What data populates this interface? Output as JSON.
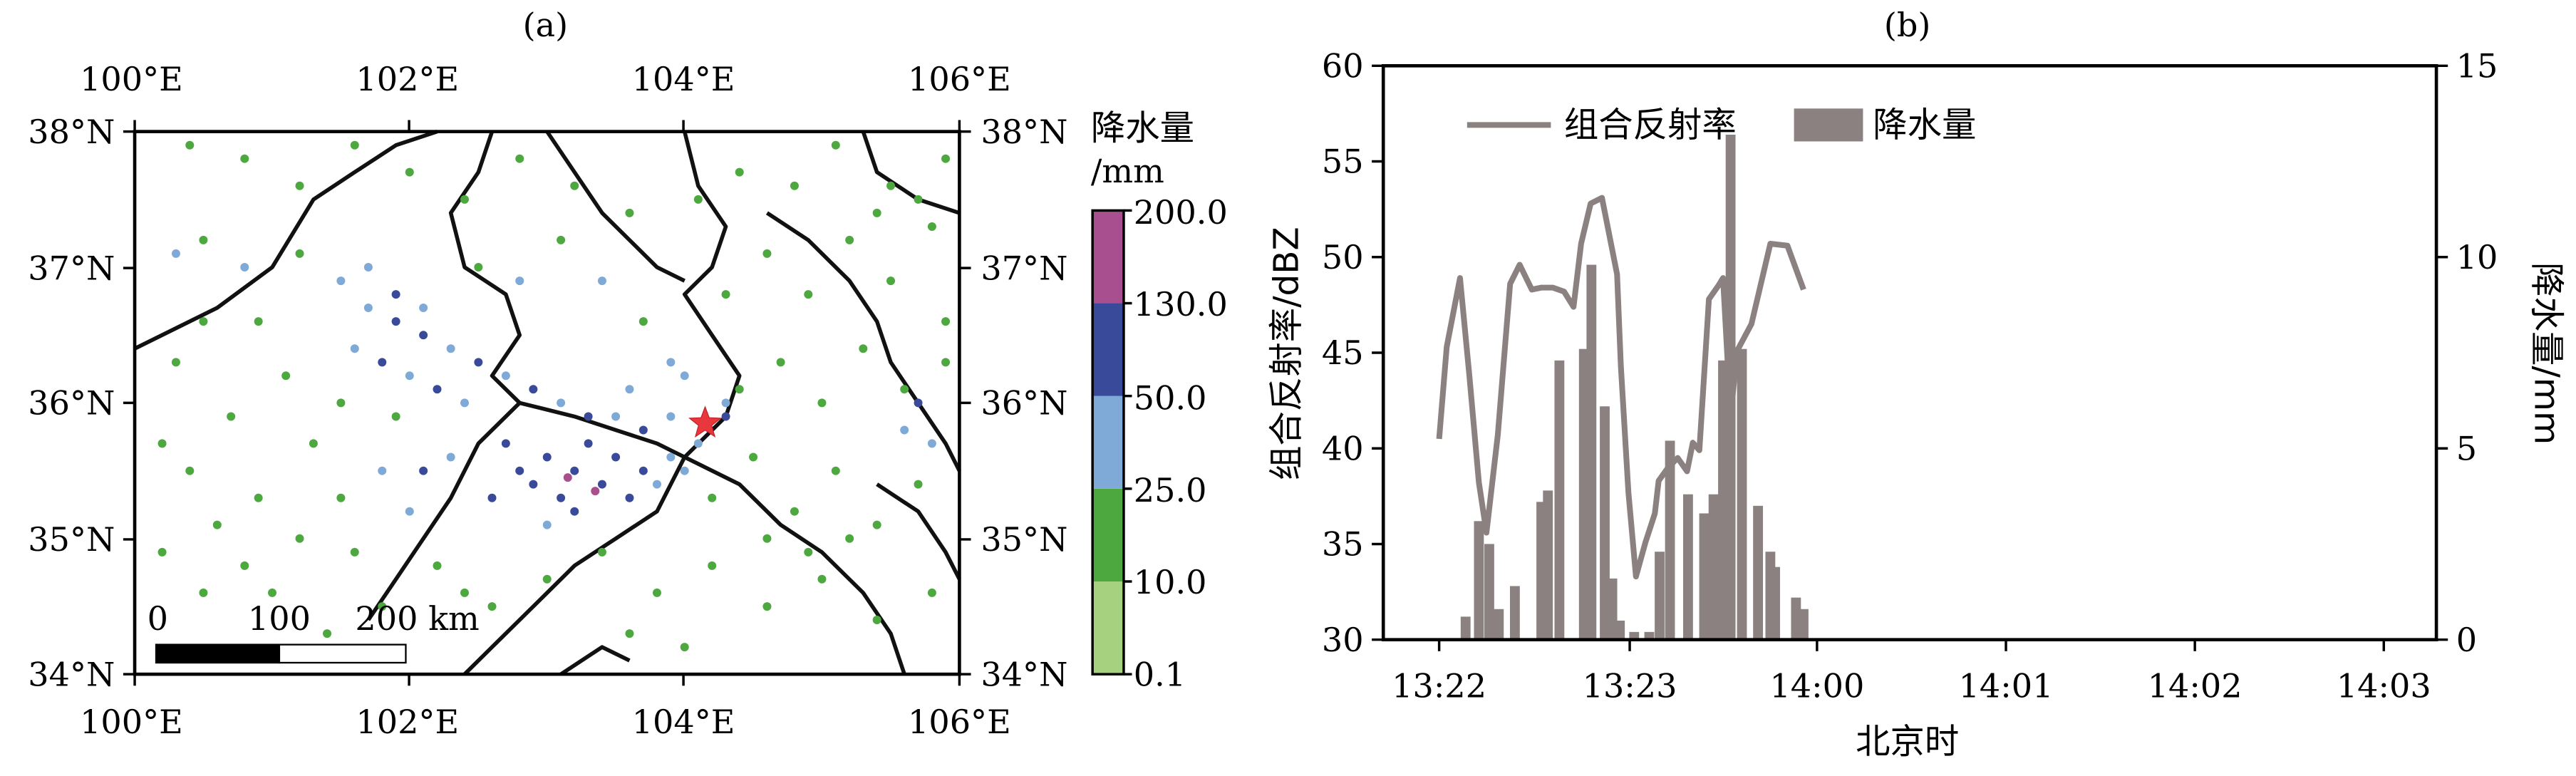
{
  "panel_a": {
    "label": "(a)",
    "lon_ticks": [
      "100°E",
      "102°E",
      "104°E",
      "106°E"
    ],
    "lat_ticks": [
      "38°N",
      "37°N",
      "36°N",
      "35°N",
      "34°N"
    ],
    "colorbar": {
      "title_line1": "降水量",
      "title_line2": "/mm",
      "levels": [
        "0.1",
        "10.0",
        "25.0",
        "50.0",
        "130.0",
        "200.0"
      ],
      "colors": [
        "#a6d27f",
        "#4ca83f",
        "#7fa9d6",
        "#3a4a9a",
        "#a8508f"
      ]
    },
    "scalebar": {
      "labels": [
        "0",
        "100",
        "200 km"
      ]
    },
    "marker_color": "#e8383d",
    "stations": [
      [
        101.2,
        37.1,
        1
      ],
      [
        101.5,
        36.9,
        2
      ],
      [
        101.7,
        36.7,
        2
      ],
      [
        101.9,
        36.6,
        3
      ],
      [
        102.1,
        36.5,
        3
      ],
      [
        102.3,
        36.4,
        2
      ],
      [
        102.5,
        36.3,
        3
      ],
      [
        102.7,
        36.2,
        2
      ],
      [
        102.9,
        36.1,
        3
      ],
      [
        103.1,
        36.0,
        2
      ],
      [
        103.3,
        35.9,
        3
      ],
      [
        103.5,
        35.9,
        2
      ],
      [
        103.7,
        35.8,
        3
      ],
      [
        103.9,
        35.9,
        2
      ],
      [
        101.6,
        36.4,
        2
      ],
      [
        101.8,
        36.3,
        3
      ],
      [
        102.0,
        36.2,
        2
      ],
      [
        102.2,
        36.1,
        3
      ],
      [
        102.4,
        36.0,
        2
      ],
      [
        101.9,
        36.8,
        3
      ],
      [
        101.7,
        37.0,
        2
      ],
      [
        102.1,
        36.7,
        2
      ],
      [
        100.8,
        37.0,
        2
      ],
      [
        100.5,
        37.2,
        1
      ],
      [
        100.3,
        37.1,
        2
      ],
      [
        102.7,
        35.7,
        3
      ],
      [
        102.8,
        35.5,
        3
      ],
      [
        102.9,
        35.4,
        3
      ],
      [
        103.0,
        35.6,
        3
      ],
      [
        103.1,
        35.3,
        3
      ],
      [
        103.2,
        35.5,
        3
      ],
      [
        103.3,
        35.7,
        3
      ],
      [
        103.4,
        35.4,
        3
      ],
      [
        103.5,
        35.6,
        3
      ],
      [
        103.6,
        35.3,
        3
      ],
      [
        103.7,
        35.5,
        3
      ],
      [
        103.8,
        35.4,
        2
      ],
      [
        103.9,
        35.6,
        2
      ],
      [
        104.0,
        35.5,
        2
      ],
      [
        103.2,
        35.2,
        3
      ],
      [
        103.0,
        35.1,
        2
      ],
      [
        102.6,
        35.3,
        3
      ],
      [
        103.35,
        35.35,
        4
      ],
      [
        103.15,
        35.45,
        4
      ],
      [
        102.3,
        35.6,
        2
      ],
      [
        102.1,
        35.5,
        3
      ],
      [
        102.0,
        35.2,
        2
      ],
      [
        101.8,
        35.5,
        2
      ],
      [
        101.5,
        35.3,
        1
      ],
      [
        101.2,
        35.0,
        1
      ],
      [
        100.9,
        35.3,
        1
      ],
      [
        100.6,
        35.1,
        1
      ],
      [
        100.4,
        35.5,
        1
      ],
      [
        100.2,
        35.7,
        1
      ],
      [
        100.3,
        36.3,
        1
      ],
      [
        100.5,
        36.6,
        1
      ],
      [
        100.9,
        36.6,
        1
      ],
      [
        101.1,
        36.2,
        1
      ],
      [
        100.7,
        35.9,
        1
      ],
      [
        101.3,
        35.7,
        1
      ],
      [
        101.5,
        36.0,
        1
      ],
      [
        101.9,
        35.9,
        1
      ],
      [
        101.0,
        34.6,
        1
      ],
      [
        101.4,
        34.3,
        1
      ],
      [
        101.8,
        34.5,
        1
      ],
      [
        102.2,
        34.8,
        1
      ],
      [
        102.6,
        34.5,
        1
      ],
      [
        103.0,
        34.7,
        1
      ],
      [
        103.4,
        34.9,
        1
      ],
      [
        103.8,
        34.6,
        1
      ],
      [
        104.2,
        34.8,
        1
      ],
      [
        104.6,
        34.5,
        1
      ],
      [
        105.0,
        34.7,
        1
      ],
      [
        105.4,
        34.4,
        1
      ],
      [
        105.8,
        34.6,
        1
      ],
      [
        104.2,
        35.3,
        1
      ],
      [
        104.5,
        35.6,
        1
      ],
      [
        104.8,
        35.2,
        1
      ],
      [
        105.1,
        35.5,
        1
      ],
      [
        105.4,
        35.1,
        1
      ],
      [
        105.7,
        35.4,
        1
      ],
      [
        104.4,
        36.1,
        1
      ],
      [
        104.7,
        36.3,
        1
      ],
      [
        105.0,
        36.0,
        1
      ],
      [
        105.3,
        36.4,
        1
      ],
      [
        105.6,
        36.1,
        1
      ],
      [
        105.9,
        36.3,
        1
      ],
      [
        104.3,
        36.8,
        1
      ],
      [
        104.6,
        37.1,
        1
      ],
      [
        104.9,
        36.8,
        1
      ],
      [
        105.2,
        37.2,
        1
      ],
      [
        105.5,
        36.9,
        1
      ],
      [
        105.8,
        37.3,
        1
      ],
      [
        104.1,
        37.5,
        1
      ],
      [
        104.4,
        37.7,
        1
      ],
      [
        104.8,
        37.6,
        1
      ],
      [
        105.1,
        37.9,
        1
      ],
      [
        105.5,
        37.6,
        1
      ],
      [
        105.9,
        37.8,
        1
      ],
      [
        103.6,
        37.4,
        1
      ],
      [
        103.2,
        37.6,
        1
      ],
      [
        102.8,
        37.8,
        1
      ],
      [
        102.4,
        37.5,
        1
      ],
      [
        102.0,
        37.7,
        1
      ],
      [
        101.6,
        37.9,
        1
      ],
      [
        101.2,
        37.6,
        1
      ],
      [
        100.8,
        37.8,
        1
      ],
      [
        100.4,
        37.9,
        1
      ],
      [
        103.7,
        36.6,
        1
      ],
      [
        103.4,
        36.9,
        2
      ],
      [
        103.1,
        37.2,
        1
      ],
      [
        102.8,
        36.9,
        2
      ],
      [
        102.5,
        37.0,
        1
      ],
      [
        104.0,
        36.2,
        2
      ],
      [
        104.3,
        36.0,
        2
      ],
      [
        104.1,
        35.7,
        2
      ],
      [
        104.3,
        35.9,
        3
      ],
      [
        103.6,
        36.1,
        2
      ],
      [
        103.9,
        36.3,
        2
      ],
      [
        105.4,
        37.4,
        1
      ],
      [
        105.7,
        37.5,
        1
      ],
      [
        105.9,
        36.6,
        1
      ],
      [
        105.7,
        36.0,
        3
      ],
      [
        105.8,
        35.7,
        2
      ],
      [
        105.6,
        35.8,
        2
      ],
      [
        104.6,
        35.0,
        1
      ],
      [
        104.9,
        34.9,
        1
      ],
      [
        105.2,
        35.0,
        1
      ],
      [
        102.4,
        34.6,
        1
      ],
      [
        101.6,
        34.9,
        1
      ],
      [
        100.8,
        34.8,
        1
      ],
      [
        100.5,
        34.6,
        1
      ],
      [
        100.2,
        34.9,
        1
      ],
      [
        103.6,
        34.3,
        1
      ],
      [
        104.0,
        34.2,
        1
      ]
    ],
    "boundaries": [
      [
        [
          100.0,
          36.4
        ],
        [
          100.6,
          36.7
        ],
        [
          101.0,
          37.0
        ],
        [
          101.3,
          37.5
        ],
        [
          101.6,
          37.7
        ],
        [
          101.9,
          37.9
        ],
        [
          102.2,
          38.0
        ]
      ],
      [
        [
          102.6,
          38.0
        ],
        [
          102.5,
          37.7
        ],
        [
          102.3,
          37.4
        ],
        [
          102.4,
          37.0
        ],
        [
          102.7,
          36.8
        ],
        [
          102.8,
          36.5
        ],
        [
          102.6,
          36.2
        ],
        [
          102.8,
          36.0
        ]
      ],
      [
        [
          102.8,
          36.0
        ],
        [
          103.2,
          35.9
        ],
        [
          103.5,
          35.8
        ],
        [
          103.8,
          35.7
        ],
        [
          104.0,
          35.6
        ]
      ],
      [
        [
          102.8,
          36.0
        ],
        [
          102.5,
          35.7
        ],
        [
          102.3,
          35.3
        ],
        [
          102.1,
          35.0
        ],
        [
          101.9,
          34.7
        ],
        [
          101.7,
          34.4
        ]
      ],
      [
        [
          103.0,
          38.0
        ],
        [
          103.2,
          37.7
        ],
        [
          103.4,
          37.4
        ],
        [
          103.6,
          37.2
        ],
        [
          103.8,
          37.0
        ],
        [
          104.0,
          36.9
        ]
      ],
      [
        [
          104.0,
          38.0
        ],
        [
          104.1,
          37.6
        ],
        [
          104.3,
          37.3
        ],
        [
          104.2,
          37.0
        ],
        [
          104.0,
          36.8
        ],
        [
          104.2,
          36.5
        ],
        [
          104.4,
          36.2
        ],
        [
          104.3,
          35.9
        ],
        [
          104.0,
          35.6
        ]
      ],
      [
        [
          104.0,
          35.6
        ],
        [
          103.8,
          35.2
        ],
        [
          103.5,
          35.0
        ],
        [
          103.2,
          34.8
        ],
        [
          102.9,
          34.5
        ],
        [
          102.6,
          34.2
        ],
        [
          102.4,
          34.0
        ]
      ],
      [
        [
          104.0,
          35.6
        ],
        [
          104.4,
          35.4
        ],
        [
          104.7,
          35.1
        ],
        [
          105.0,
          34.9
        ],
        [
          105.3,
          34.6
        ],
        [
          105.5,
          34.3
        ],
        [
          105.6,
          34.0
        ]
      ],
      [
        [
          104.6,
          37.4
        ],
        [
          104.9,
          37.2
        ],
        [
          105.2,
          36.9
        ],
        [
          105.4,
          36.6
        ],
        [
          105.5,
          36.3
        ],
        [
          105.7,
          36.0
        ],
        [
          105.9,
          35.7
        ],
        [
          106.0,
          35.5
        ]
      ],
      [
        [
          105.3,
          38.0
        ],
        [
          105.4,
          37.7
        ],
        [
          105.7,
          37.5
        ],
        [
          106.0,
          37.4
        ]
      ],
      [
        [
          103.1,
          34.0
        ],
        [
          103.4,
          34.2
        ],
        [
          103.6,
          34.1
        ]
      ],
      [
        [
          105.4,
          35.4
        ],
        [
          105.7,
          35.2
        ],
        [
          105.9,
          34.9
        ],
        [
          106.0,
          34.7
        ]
      ]
    ]
  },
  "panel_b": {
    "label": "(b)",
    "legend": {
      "line_label": "组合反射率",
      "bar_label": "降水量"
    },
    "line_color": "#8c8181",
    "bar_color": "#8c8181"
  },
  "chart_data": [
    {
      "type": "scatter",
      "title": "(a)",
      "xlim": [
        100,
        106
      ],
      "ylim": [
        34,
        38
      ],
      "x_ticks": [
        "100°E",
        "102°E",
        "104°E",
        "106°E"
      ],
      "y_ticks": [
        "38°N",
        "37°N",
        "36°N",
        "35°N",
        "34°N"
      ],
      "legend": {
        "title": "降水量 /mm",
        "levels": [
          "0.1",
          "10.0",
          "25.0",
          "50.0",
          "130.0",
          "200.0"
        ],
        "placement": "right colorbar"
      },
      "marker": {
        "symbol": "star",
        "lon": 104.15,
        "lat": 35.85
      }
    },
    {
      "type": "line",
      "title": "(b)",
      "xlabel": "北京时",
      "ylabel": "组合反射率/dBZ",
      "y2label": "降水量/mm",
      "x_ticks": [
        "13:22",
        "13:23",
        "14:00",
        "14:01",
        "14:02",
        "14:03"
      ],
      "ylim": [
        30,
        60
      ],
      "y2lim": [
        0,
        15
      ],
      "y_ticks": [
        30,
        35,
        40,
        45,
        50,
        55,
        60
      ],
      "y2_ticks": [
        0,
        5,
        10,
        15
      ],
      "legend_placement": "top-left",
      "series": [
        {
          "name": "组合反射率",
          "type": "line",
          "axis": "left",
          "x": [
            0.0,
            0.08,
            0.22,
            0.32,
            0.42,
            0.5,
            0.62,
            0.75,
            0.85,
            0.98,
            1.08,
            1.2,
            1.32,
            1.42,
            1.5,
            1.6,
            1.72,
            1.88,
            1.92,
            2.0,
            2.08,
            2.18,
            2.28,
            2.32,
            2.42,
            2.52,
            2.62,
            2.68,
            2.75,
            2.85,
            2.95,
            3.0,
            3.08,
            3.15,
            3.3,
            3.5,
            3.68,
            3.85
          ],
          "y": [
            40.5,
            45.3,
            48.9,
            43.8,
            38.2,
            35.6,
            40.7,
            48.6,
            49.6,
            48.3,
            48.4,
            48.4,
            48.2,
            47.4,
            50.7,
            52.8,
            53.1,
            49.1,
            44.3,
            37.7,
            33.3,
            35.1,
            36.6,
            38.3,
            39.0,
            39.5,
            38.8,
            40.3,
            39.9,
            47.8,
            48.5,
            48.9,
            41.7,
            45.1,
            46.5,
            50.7,
            50.6,
            48.3
          ]
        }
      ],
      "bars": {
        "name": "降水量",
        "axis": "right",
        "x": [
          0.28,
          0.42,
          0.53,
          0.63,
          0.8,
          1.08,
          1.15,
          1.27,
          1.53,
          1.61,
          1.75,
          1.83,
          1.91,
          2.06,
          2.22,
          2.33,
          2.44,
          2.63,
          2.8,
          2.9,
          3.0,
          3.08,
          3.2,
          3.37,
          3.5,
          3.55,
          3.77,
          3.85
        ],
        "values": [
          0.6,
          3.1,
          2.5,
          0.8,
          1.4,
          3.6,
          3.9,
          7.3,
          7.6,
          9.8,
          6.1,
          1.6,
          0.5,
          0.2,
          0.2,
          2.3,
          5.2,
          3.8,
          3.3,
          3.8,
          7.3,
          13.2,
          7.6,
          3.5,
          2.3,
          1.9,
          1.1,
          0.8
        ]
      }
    }
  ]
}
